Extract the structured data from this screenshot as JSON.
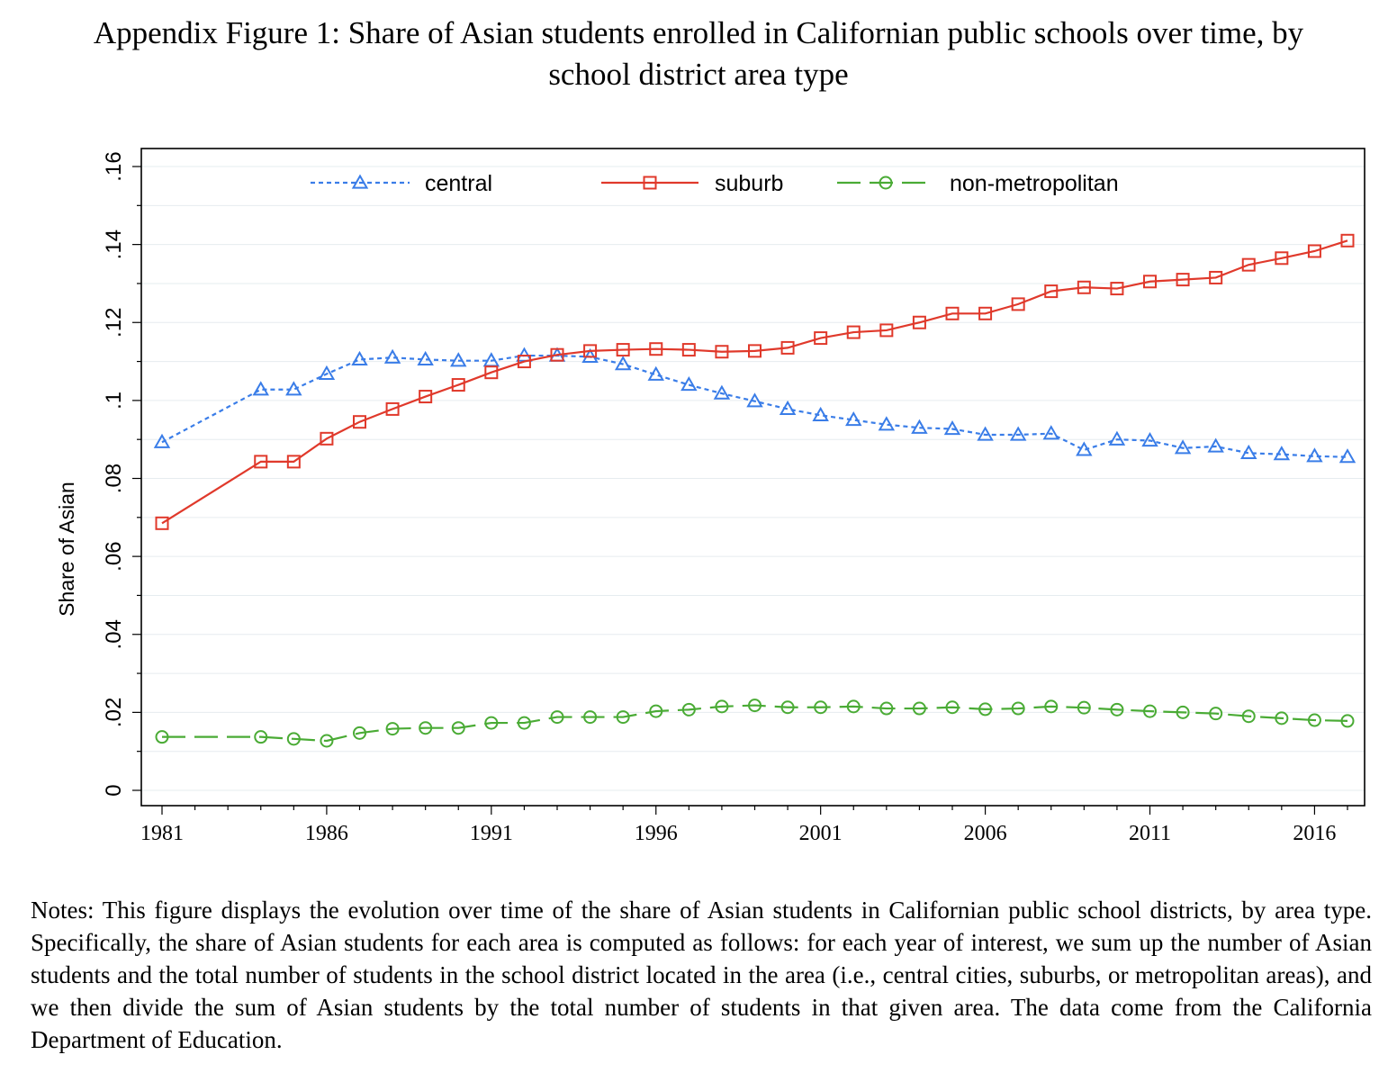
{
  "figure": {
    "title_line1": "Appendix Figure 1: Share of Asian students enrolled in Californian public schools over time, by",
    "title_line2": "school district area type",
    "notes": "Notes: This figure displays the evolution over time of the share of Asian students in Californian public school districts, by area type. Specifically, the share of Asian students for each area is computed as follows: for each year of interest, we sum up the number of Asian students and the total number of students in the school district located in the area (i.e., central cities, suburbs, or metropolitan areas), and we then divide the sum of Asian students by the total number of students in that given area. The data come from the California Department of Education."
  },
  "chart_data": {
    "type": "line",
    "title": "",
    "xlabel": "",
    "ylabel": "Share of Asian",
    "xlim": [
      1981,
      2017
    ],
    "ylim": [
      0,
      0.16
    ],
    "x_ticks": [
      1981,
      1986,
      1991,
      1996,
      2001,
      2006,
      2011,
      2016
    ],
    "y_ticks": [
      0,
      0.02,
      0.04,
      0.06,
      0.08,
      0.1,
      0.12,
      0.14,
      0.16
    ],
    "y_tick_labels": [
      "0",
      ".02",
      ".04",
      ".06",
      ".08",
      ".1",
      ".12",
      ".14",
      ".16"
    ],
    "grid": true,
    "legend_position": "top",
    "x": [
      1981,
      1984,
      1985,
      1986,
      1987,
      1988,
      1989,
      1990,
      1991,
      1992,
      1993,
      1994,
      1995,
      1996,
      1997,
      1998,
      1999,
      2000,
      2001,
      2002,
      2003,
      2004,
      2005,
      2006,
      2007,
      2008,
      2009,
      2010,
      2011,
      2012,
      2013,
      2014,
      2015,
      2016,
      2017
    ],
    "series": [
      {
        "name": "central",
        "color": "#3a7de8",
        "marker": "triangle",
        "line_style": "dotted",
        "values": [
          0.0893,
          0.1028,
          0.1028,
          0.1068,
          0.1105,
          0.111,
          0.1105,
          0.1102,
          0.1102,
          0.1115,
          0.1115,
          0.1112,
          0.1093,
          0.1066,
          0.104,
          0.1018,
          0.0998,
          0.0978,
          0.0962,
          0.095,
          0.0938,
          0.093,
          0.0927,
          0.0912,
          0.0912,
          0.0915,
          0.0873,
          0.09,
          0.0897,
          0.0878,
          0.0882,
          0.0865,
          0.0862,
          0.0857,
          0.0855
        ]
      },
      {
        "name": "suburb",
        "color": "#e0392b",
        "marker": "square",
        "line_style": "solid",
        "values": [
          0.0685,
          0.0843,
          0.0843,
          0.0902,
          0.0945,
          0.0978,
          0.101,
          0.104,
          0.1072,
          0.11,
          0.1117,
          0.1127,
          0.113,
          0.1132,
          0.113,
          0.1125,
          0.1127,
          0.1135,
          0.116,
          0.1175,
          0.118,
          0.12,
          0.1223,
          0.1223,
          0.1247,
          0.128,
          0.129,
          0.1287,
          0.1305,
          0.131,
          0.1315,
          0.1348,
          0.1365,
          0.1383,
          0.141
        ]
      },
      {
        "name": "non-metropolitan",
        "color": "#4aab35",
        "marker": "circle",
        "line_style": "dashed",
        "values": [
          0.0137,
          0.0137,
          0.0132,
          0.0127,
          0.0147,
          0.0158,
          0.016,
          0.016,
          0.0173,
          0.0173,
          0.0188,
          0.0188,
          0.0188,
          0.0203,
          0.0207,
          0.0215,
          0.0218,
          0.0213,
          0.0213,
          0.0215,
          0.021,
          0.021,
          0.0213,
          0.0208,
          0.021,
          0.0215,
          0.0212,
          0.0207,
          0.0203,
          0.02,
          0.0197,
          0.019,
          0.0185,
          0.018,
          0.0178
        ]
      }
    ]
  }
}
